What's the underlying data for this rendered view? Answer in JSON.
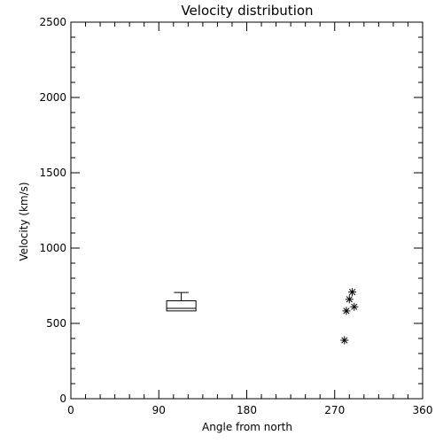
{
  "chart_data": {
    "type": "scatter",
    "title": "Velocity distribution",
    "xlabel": "Angle from north",
    "ylabel": "Velocity (km/s)",
    "xlim": [
      0,
      360
    ],
    "ylim": [
      0,
      2500
    ],
    "xticks": [
      0,
      90,
      180,
      270,
      360
    ],
    "yticks": [
      0,
      500,
      1000,
      1500,
      2000,
      2500
    ],
    "grid": false,
    "box": {
      "x_range": [
        98,
        128
      ],
      "q1": 583,
      "median": 600,
      "q3": 650,
      "whisker_high": 705
    },
    "points": [
      {
        "x": 288,
        "y": 708
      },
      {
        "x": 285,
        "y": 660
      },
      {
        "x": 290,
        "y": 610
      },
      {
        "x": 282,
        "y": 583
      },
      {
        "x": 280,
        "y": 388
      }
    ]
  }
}
